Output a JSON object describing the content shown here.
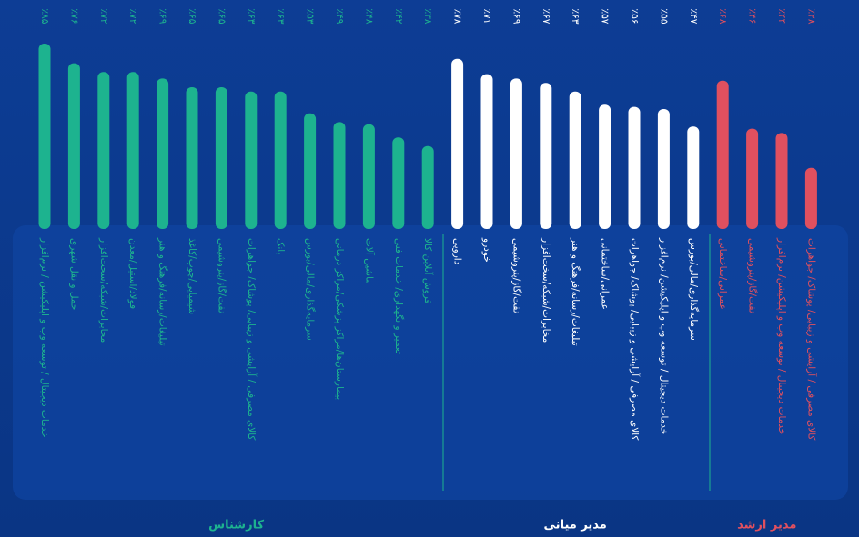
{
  "chart_data": {
    "type": "bar",
    "ylim": [
      0,
      100
    ],
    "series": [
      {
        "name": "کارشناس",
        "color": "#1db38f",
        "categories": [
          "خدمات دیجیتال / توسعه وب و اپلیکیشن / نرم‌افزار",
          "حمل و نقل شهری",
          "مخابرات/شبکه/سخت‌افزار",
          "فولاد/استیل/معدن",
          "تبلیغات/رسانه/فرهنگ و هنر",
          "شیمیایی/چوب/کاغذ",
          "نفت/گاز/پتروشیمی",
          "کالای مصرفی / آرایشی و زیبایی/ پوشاک/ جواهرات",
          "بانک",
          "سرمایه‌گذاری/مالی/بورس",
          "بیمارستان‌ها/مراکز پزشکی/مراکز درمانی",
          "ماشین آلات",
          "تعمیر و نگهداری/ خدمات فنی",
          "فروش آنلاین کالا"
        ],
        "values": [
          85,
          76,
          72,
          72,
          69,
          65,
          65,
          63,
          63,
          53,
          49,
          48,
          42,
          38
        ],
        "value_labels": [
          "٪۸۵",
          "٪۷۶",
          "٪۷۲",
          "٪۷۲",
          "٪۶۹",
          "٪۶۵",
          "٪۶۵",
          "٪۶۳",
          "٪۶۳",
          "٪۵۳",
          "٪۴۹",
          "٪۴۸",
          "٪۴۲",
          "٪۳۸"
        ]
      },
      {
        "name": "مدیر میانی",
        "color": "#ffffff",
        "categories": [
          "دارویی",
          "خودرو",
          "نفت/گاز/پتروشیمی",
          "مخابرات/شبکه/سخت‌افزار",
          "تبلیغات/رسانه/فرهنگ و هنر",
          "عمرانی/ساختمانی",
          "کالای مصرفی / آرایشی و زیبایی/ پوشاک/ جواهرات",
          "خدمات دیجیتال / توسعه وب و اپلیکیشن/ نرم‌افزار",
          "سرمایه‌گذاری/مالی/بورس"
        ],
        "values": [
          78,
          71,
          69,
          67,
          63,
          57,
          56,
          55,
          47
        ],
        "value_labels": [
          "٪۷۸",
          "٪۷۱",
          "٪۶۹",
          "٪۶۷",
          "٪۶۳",
          "٪۵۷",
          "٪۵۶",
          "٪۵۵",
          "٪۴۷"
        ]
      },
      {
        "name": "مدیر ارشد",
        "color": "#e0505f",
        "categories": [
          "عمرانی/ساختمانی",
          "نفت/گاز/پتروشیمی",
          "خدمات دیجیتال / توسعه وب و اپلیکیشن/ نرم‌افزار",
          "کالای مصرفی / آرایشی و زیبایی/ پوشاک/ جواهرات"
        ],
        "values": [
          68,
          46,
          44,
          28
        ],
        "value_labels": [
          "٪۶۸",
          "٪۴۶",
          "٪۴۴",
          "٪۲۸"
        ]
      }
    ]
  }
}
